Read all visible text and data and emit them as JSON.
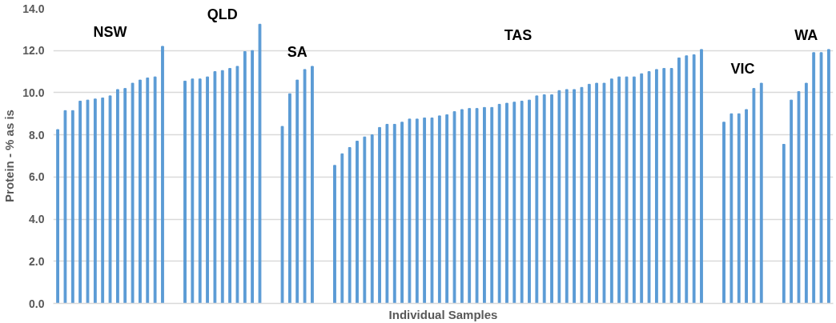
{
  "chart_data": {
    "type": "bar",
    "xlabel": "Individual Samples",
    "ylabel": "Protein - % as is",
    "categories": [
      null,
      null,
      null,
      null,
      null,
      null,
      null,
      null,
      null,
      null,
      null,
      null,
      null,
      null,
      null,
      null,
      null,
      null,
      null,
      null,
      null,
      null,
      null,
      null,
      null,
      null,
      null,
      null,
      null,
      null,
      null,
      null,
      null,
      null,
      null,
      null,
      null,
      null,
      null,
      null,
      null,
      null,
      null,
      null,
      null,
      null,
      null,
      null,
      null,
      null,
      null,
      null,
      null,
      null,
      null,
      null,
      null,
      null,
      null,
      null,
      null,
      null,
      null,
      null,
      null,
      null,
      null,
      null,
      null,
      null,
      null,
      null,
      null,
      null,
      null,
      null,
      null,
      null,
      null,
      null,
      null,
      null,
      null,
      null,
      null,
      null,
      null,
      null,
      null,
      null,
      null,
      null,
      null,
      null,
      null,
      null,
      null,
      null,
      null,
      null,
      null,
      null,
      null,
      null
    ],
    "values": [
      8.25,
      9.15,
      9.15,
      9.6,
      9.65,
      9.7,
      9.75,
      9.85,
      10.15,
      10.2,
      10.45,
      10.6,
      10.7,
      10.75,
      12.2,
      null,
      null,
      10.55,
      10.65,
      10.65,
      10.75,
      11.0,
      11.05,
      11.15,
      11.25,
      11.95,
      12.0,
      13.25,
      null,
      null,
      8.4,
      9.95,
      10.6,
      11.1,
      11.25,
      null,
      null,
      6.55,
      7.1,
      7.4,
      7.7,
      7.9,
      8.0,
      8.35,
      8.5,
      8.5,
      8.6,
      8.75,
      8.75,
      8.8,
      8.8,
      8.9,
      8.95,
      9.1,
      9.2,
      9.25,
      9.25,
      9.3,
      9.3,
      9.45,
      9.5,
      9.55,
      9.6,
      9.65,
      9.85,
      9.9,
      9.9,
      10.1,
      10.15,
      10.15,
      10.25,
      10.4,
      10.45,
      10.45,
      10.65,
      10.75,
      10.75,
      10.75,
      10.9,
      11.0,
      11.1,
      11.15,
      11.15,
      11.65,
      11.75,
      11.8,
      12.05,
      null,
      null,
      8.6,
      9.0,
      9.0,
      9.2,
      10.2,
      10.45,
      null,
      null,
      7.55,
      9.65,
      10.05,
      10.45,
      11.9,
      11.9,
      12.05
    ],
    "color": "#5b9bd5",
    "annotations": [
      "NSW",
      "QLD",
      "SA",
      "TAS",
      "VIC",
      "WA"
    ],
    "ylim": [
      0,
      14
    ],
    "yticks": [
      {
        "value": 0,
        "label": "0.0"
      },
      {
        "value": 2,
        "label": "2.0"
      },
      {
        "value": 4,
        "label": "4.0"
      },
      {
        "value": 6,
        "label": "6.0"
      },
      {
        "value": 8,
        "label": "8.0"
      },
      {
        "value": 10,
        "label": "10.0"
      },
      {
        "value": 12,
        "label": "12.0"
      },
      {
        "value": 14,
        "label": "14.0"
      }
    ],
    "grid": "y",
    "tick_labels": "y"
  }
}
